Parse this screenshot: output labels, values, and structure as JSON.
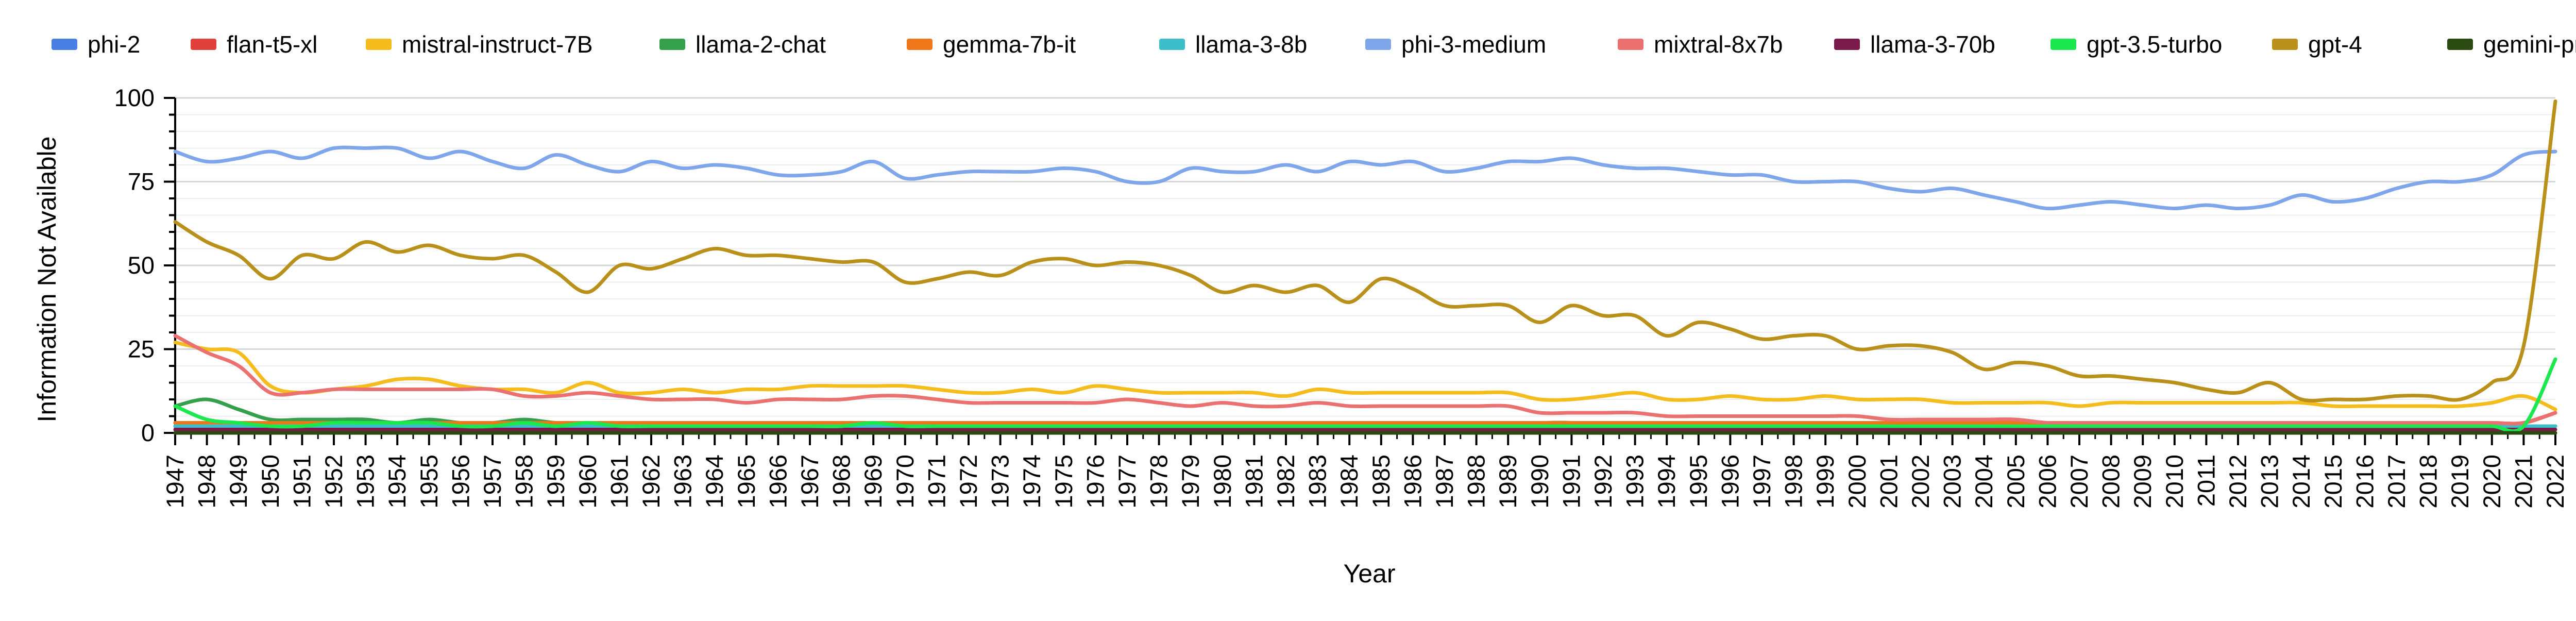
{
  "chart_data": {
    "type": "line",
    "title": "",
    "xlabel": "Year",
    "ylabel": "Information Not Available",
    "ylim": [
      0,
      100
    ],
    "yticks": [
      0,
      25,
      50,
      75,
      100
    ],
    "xlim": [
      1947,
      2022
    ],
    "grid": true,
    "legend_position": "top",
    "x": [
      1947,
      1948,
      1949,
      1950,
      1951,
      1952,
      1953,
      1954,
      1955,
      1956,
      1957,
      1958,
      1959,
      1960,
      1961,
      1962,
      1963,
      1964,
      1965,
      1966,
      1967,
      1968,
      1969,
      1970,
      1971,
      1972,
      1973,
      1974,
      1975,
      1976,
      1977,
      1978,
      1979,
      1980,
      1981,
      1982,
      1983,
      1984,
      1985,
      1986,
      1987,
      1988,
      1989,
      1990,
      1991,
      1992,
      1993,
      1994,
      1995,
      1996,
      1997,
      1998,
      1999,
      2000,
      2001,
      2002,
      2003,
      2004,
      2005,
      2006,
      2007,
      2008,
      2009,
      2010,
      2011,
      2012,
      2013,
      2014,
      2015,
      2016,
      2017,
      2018,
      2019,
      2020,
      2021,
      2022
    ],
    "xtick_labels": [
      "1947",
      "1948",
      "1949",
      "1950",
      "1951",
      "1952",
      "1953",
      "1954",
      "1955",
      "1956",
      "1957",
      "1958",
      "1959",
      "1960",
      "1961",
      "1962",
      "1963",
      "1964",
      "1965",
      "1966",
      "1967",
      "1968",
      "1969",
      "1970",
      "1971",
      "1972",
      "1973",
      "1974",
      "1975",
      "1976",
      "1977",
      "1978",
      "1979",
      "1980",
      "1981",
      "1982",
      "1983",
      "1984",
      "1985",
      "1986",
      "1987",
      "1988",
      "1989",
      "1990",
      "1991",
      "1992",
      "1993",
      "1994",
      "1995",
      "1996",
      "1997",
      "1998",
      "1999",
      "2000",
      "2001",
      "2002",
      "2003",
      "2004",
      "2005",
      "2006",
      "2007",
      "2008",
      "2009",
      "2010",
      "2011",
      "2012",
      "2013",
      "2014",
      "2015",
      "2016",
      "2017",
      "2018",
      "2019",
      "2020",
      "2021",
      "2022"
    ],
    "series": [
      {
        "name": "phi-2",
        "color": "#4A7FE6",
        "values": [
          1,
          1,
          1,
          1,
          1,
          1,
          1,
          1,
          1,
          1,
          1,
          1,
          1,
          1,
          1,
          1,
          1,
          1,
          1,
          1,
          1,
          1,
          1,
          1,
          1,
          1,
          1,
          1,
          1,
          1,
          1,
          1,
          1,
          1,
          1,
          1,
          1,
          1,
          1,
          1,
          1,
          1,
          1,
          1,
          1,
          1,
          1,
          1,
          1,
          1,
          1,
          1,
          1,
          1,
          1,
          1,
          1,
          1,
          1,
          1,
          1,
          1,
          1,
          1,
          1,
          1,
          1,
          1,
          1,
          1,
          1,
          1,
          1,
          1,
          1,
          2
        ]
      },
      {
        "name": "flan-t5-xl",
        "color": "#E0413C",
        "values": [
          2,
          2,
          2,
          2,
          2,
          2,
          2,
          2,
          2,
          2,
          2,
          2,
          2,
          2,
          2,
          2,
          2,
          2,
          2,
          2,
          2,
          2,
          2,
          2,
          2,
          2,
          2,
          2,
          2,
          2,
          2,
          2,
          2,
          2,
          2,
          2,
          2,
          2,
          2,
          2,
          2,
          2,
          2,
          2,
          2,
          2,
          2,
          2,
          2,
          2,
          2,
          2,
          2,
          2,
          2,
          2,
          2,
          2,
          2,
          2,
          2,
          2,
          2,
          2,
          2,
          2,
          2,
          2,
          2,
          2,
          2,
          2,
          2,
          2,
          3,
          6
        ]
      },
      {
        "name": "mistral-instruct-7B",
        "color": "#F4BC1C",
        "values": [
          27,
          25,
          24,
          14,
          12,
          13,
          14,
          16,
          16,
          14,
          13,
          13,
          12,
          15,
          12,
          12,
          13,
          12,
          13,
          13,
          14,
          14,
          14,
          14,
          13,
          12,
          12,
          13,
          12,
          14,
          13,
          12,
          12,
          12,
          12,
          11,
          13,
          12,
          12,
          12,
          12,
          12,
          12,
          10,
          10,
          11,
          12,
          10,
          10,
          11,
          10,
          10,
          11,
          10,
          10,
          10,
          9,
          9,
          9,
          9,
          8,
          9,
          9,
          9,
          9,
          9,
          9,
          9,
          8,
          8,
          8,
          8,
          8,
          9,
          11,
          7
        ]
      },
      {
        "name": "llama-2-chat",
        "color": "#34A04B",
        "values": [
          8,
          10,
          7,
          4,
          4,
          4,
          4,
          3,
          4,
          3,
          3,
          4,
          3,
          3,
          3,
          3,
          3,
          3,
          3,
          3,
          3,
          3,
          3,
          3,
          3,
          3,
          3,
          3,
          3,
          3,
          3,
          3,
          3,
          3,
          3,
          3,
          3,
          3,
          3,
          3,
          3,
          3,
          3,
          3,
          3,
          2,
          2,
          2,
          2,
          2,
          2,
          2,
          2,
          2,
          2,
          2,
          2,
          2,
          2,
          2,
          2,
          2,
          2,
          2,
          2,
          2,
          2,
          2,
          2,
          2,
          2,
          2,
          2,
          2,
          2,
          2
        ]
      },
      {
        "name": "gemma-7b-it",
        "color": "#F0761A",
        "values": [
          3,
          3,
          3,
          3,
          3,
          3,
          3,
          3,
          3,
          3,
          3,
          3,
          3,
          3,
          3,
          3,
          3,
          3,
          3,
          3,
          3,
          3,
          3,
          3,
          3,
          3,
          3,
          3,
          3,
          3,
          3,
          3,
          3,
          3,
          3,
          3,
          3,
          3,
          3,
          3,
          3,
          3,
          3,
          3,
          3,
          3,
          3,
          3,
          3,
          3,
          3,
          3,
          3,
          3,
          3,
          3,
          3,
          3,
          3,
          3,
          3,
          3,
          3,
          3,
          3,
          3,
          3,
          3,
          3,
          3,
          3,
          3,
          3,
          3,
          3,
          6
        ]
      },
      {
        "name": "llama-3-8b",
        "color": "#3CBFCB",
        "values": [
          2,
          2,
          2,
          2,
          2,
          2,
          2,
          2,
          2,
          2,
          2,
          2,
          2,
          2,
          2,
          2,
          2,
          2,
          2,
          2,
          2,
          2,
          2,
          2,
          2,
          2,
          2,
          2,
          2,
          2,
          2,
          2,
          2,
          2,
          2,
          2,
          2,
          2,
          2,
          2,
          2,
          2,
          2,
          2,
          2,
          2,
          2,
          2,
          2,
          2,
          2,
          2,
          2,
          2,
          2,
          2,
          2,
          2,
          2,
          2,
          2,
          2,
          2,
          2,
          2,
          2,
          2,
          2,
          2,
          2,
          2,
          2,
          2,
          2,
          2,
          2
        ]
      },
      {
        "name": "phi-3-medium",
        "color": "#7FA6EB",
        "values": [
          84,
          81,
          82,
          84,
          82,
          85,
          85,
          85,
          82,
          84,
          81,
          79,
          83,
          80,
          78,
          81,
          79,
          80,
          79,
          77,
          77,
          78,
          81,
          76,
          77,
          78,
          78,
          78,
          79,
          78,
          75,
          75,
          79,
          78,
          78,
          80,
          78,
          81,
          80,
          81,
          78,
          79,
          81,
          81,
          82,
          80,
          79,
          79,
          78,
          77,
          77,
          75,
          75,
          75,
          73,
          72,
          73,
          71,
          69,
          67,
          68,
          69,
          68,
          67,
          68,
          67,
          68,
          71,
          69,
          70,
          73,
          75,
          75,
          77,
          83,
          84
        ]
      },
      {
        "name": "mixtral-8x7b",
        "color": "#EB7070",
        "values": [
          29,
          24,
          20,
          12,
          12,
          13,
          13,
          13,
          13,
          13,
          13,
          11,
          11,
          12,
          11,
          10,
          10,
          10,
          9,
          10,
          10,
          10,
          11,
          11,
          10,
          9,
          9,
          9,
          9,
          9,
          10,
          9,
          8,
          9,
          8,
          8,
          9,
          8,
          8,
          8,
          8,
          8,
          8,
          6,
          6,
          6,
          6,
          5,
          5,
          5,
          5,
          5,
          5,
          5,
          4,
          4,
          4,
          4,
          4,
          3,
          3,
          3,
          3,
          3,
          3,
          3,
          3,
          3,
          3,
          3,
          3,
          3,
          3,
          3,
          3,
          6
        ]
      },
      {
        "name": "llama-3-70b",
        "color": "#7A1A4A",
        "values": [
          1,
          1,
          1,
          1,
          1,
          1,
          1,
          1,
          1,
          1,
          1,
          1,
          1,
          1,
          1,
          1,
          1,
          1,
          1,
          1,
          1,
          1,
          1,
          1,
          1,
          1,
          1,
          1,
          1,
          1,
          1,
          1,
          1,
          1,
          1,
          1,
          1,
          1,
          1,
          1,
          1,
          1,
          1,
          1,
          1,
          1,
          1,
          1,
          1,
          1,
          1,
          1,
          1,
          1,
          1,
          1,
          1,
          1,
          1,
          1,
          1,
          1,
          1,
          1,
          1,
          1,
          1,
          1,
          1,
          1,
          1,
          1,
          1,
          1,
          1,
          1
        ]
      },
      {
        "name": "gpt-3.5-turbo",
        "color": "#1AE84E",
        "values": [
          8,
          4,
          3,
          2,
          2,
          3,
          3,
          3,
          3,
          2,
          2,
          3,
          2,
          3,
          2,
          2,
          2,
          2,
          2,
          2,
          2,
          2,
          3,
          2,
          2,
          2,
          2,
          2,
          2,
          2,
          2,
          2,
          2,
          2,
          2,
          2,
          2,
          2,
          2,
          2,
          2,
          2,
          2,
          2,
          2,
          2,
          2,
          2,
          2,
          2,
          2,
          2,
          2,
          2,
          2,
          2,
          2,
          2,
          2,
          2,
          2,
          2,
          2,
          2,
          2,
          2,
          2,
          2,
          2,
          2,
          2,
          2,
          2,
          2,
          2,
          22
        ]
      },
      {
        "name": "gpt-4",
        "color": "#B8901A",
        "values": [
          63,
          57,
          53,
          46,
          53,
          52,
          57,
          54,
          56,
          53,
          52,
          53,
          48,
          42,
          50,
          49,
          52,
          55,
          53,
          53,
          52,
          51,
          51,
          45,
          46,
          48,
          47,
          51,
          52,
          50,
          51,
          50,
          47,
          42,
          44,
          42,
          44,
          39,
          46,
          43,
          38,
          38,
          38,
          33,
          38,
          35,
          35,
          29,
          33,
          31,
          28,
          29,
          29,
          25,
          26,
          26,
          24,
          19,
          21,
          20,
          17,
          17,
          16,
          15,
          13,
          12,
          15,
          10,
          10,
          10,
          11,
          11,
          10,
          15,
          26,
          99
        ]
      },
      {
        "name": "gemini-pro",
        "color": "#2A4A12",
        "values": [
          0,
          0,
          0,
          0,
          0,
          0,
          0,
          0,
          0,
          0,
          0,
          0,
          0,
          0,
          0,
          0,
          0,
          0,
          0,
          0,
          0,
          0,
          0,
          0,
          0,
          0,
          0,
          0,
          0,
          0,
          0,
          0,
          0,
          0,
          0,
          0,
          0,
          0,
          0,
          0,
          0,
          0,
          0,
          0,
          0,
          0,
          0,
          0,
          0,
          0,
          0,
          0,
          0,
          0,
          0,
          0,
          0,
          0,
          0,
          0,
          0,
          0,
          0,
          0,
          0,
          0,
          0,
          0,
          0,
          0,
          0,
          0,
          0,
          0,
          0,
          0
        ]
      }
    ]
  }
}
